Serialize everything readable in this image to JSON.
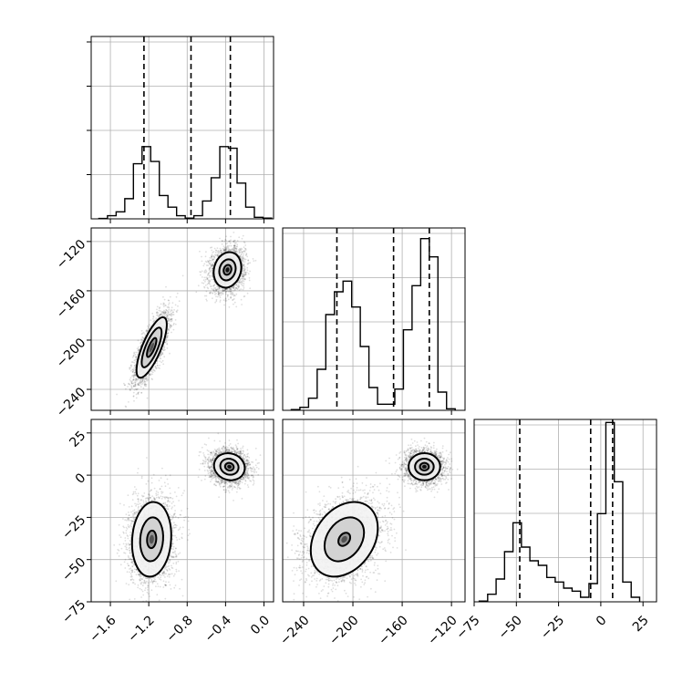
{
  "chart_data": {
    "type": "corner",
    "grid": true,
    "parameters": [
      {
        "ticks": [
          -1.6,
          -1.2,
          -0.8,
          -0.4,
          0.0
        ],
        "tick_labels": [
          "−1.6",
          "−1.2",
          "−0.8",
          "−0.4",
          "0.0"
        ],
        "range": [
          -1.8,
          0.1
        ],
        "quantiles": [
          -1.25,
          -0.76,
          -0.35
        ],
        "histogram": {
          "edges": [
            -1.72,
            -1.63,
            -1.54,
            -1.45,
            -1.36,
            -1.27,
            -1.18,
            -1.09,
            -1.0,
            -0.91,
            -0.82,
            -0.73,
            -0.64,
            -0.55,
            -0.46,
            -0.37,
            -0.28,
            -0.19,
            -0.1,
            -0.01,
            0.08
          ],
          "counts": [
            0.5,
            4,
            9,
            26,
            71,
            93,
            74,
            30,
            15,
            4,
            1,
            4,
            23,
            53,
            93,
            91,
            46,
            15,
            2,
            1
          ]
        }
      },
      {
        "ticks": [
          -240,
          -200,
          -160,
          -120
        ],
        "tick_labels": [
          "−240",
          "−200",
          "−160",
          "−120"
        ],
        "range": [
          -257,
          -109
        ],
        "quantiles": [
          -213,
          -167,
          -138
        ],
        "histogram": {
          "edges": [
            -250,
            -243,
            -236,
            -229,
            -222,
            -215,
            -208,
            -201,
            -194,
            -187,
            -180,
            -173,
            -166,
            -159,
            -152,
            -145,
            -138,
            -131,
            -124,
            -117
          ],
          "counts": [
            0.5,
            2,
            8,
            27,
            63,
            78,
            85,
            68,
            42,
            15,
            4,
            4,
            14,
            53,
            82,
            113,
            101,
            12,
            1
          ]
        }
      },
      {
        "ticks": [
          -75,
          -50,
          -25,
          0,
          25
        ],
        "tick_labels": [
          "−75",
          "−50",
          "−25",
          "0",
          "25"
        ],
        "range": [
          -75,
          33
        ],
        "quantiles": [
          -48,
          -6,
          7
        ],
        "histogram": {
          "edges": [
            -72,
            -67,
            -62,
            -57,
            -52,
            -47,
            -42,
            -37,
            -32,
            -27,
            -22,
            -17,
            -12,
            -7,
            -2,
            3,
            8,
            13,
            18,
            23
          ],
          "counts": [
            0.5,
            5,
            15,
            33,
            52,
            36,
            27,
            24,
            16,
            13,
            9,
            7,
            3,
            12,
            58,
            118,
            79,
            13,
            3
          ]
        }
      }
    ],
    "pairs": [
      {
        "row": 1,
        "col": 0,
        "clusters": [
          {
            "mean": [
              -1.17,
              -206
            ],
            "sd": [
              0.09,
              14
            ],
            "corr": 0.75,
            "samples": 2600,
            "levels": [
              0.55,
              1.15,
              1.75
            ]
          },
          {
            "mean": [
              -0.38,
              -143
            ],
            "sd": [
              0.09,
              9
            ],
            "corr": 0.15,
            "samples": 2400,
            "levels": [
              0.45,
              0.95,
              1.6
            ]
          }
        ]
      },
      {
        "row": 2,
        "col": 0,
        "clusters": [
          {
            "mean": [
              -1.17,
              -38
            ],
            "sd": [
              0.12,
              13
            ],
            "corr": 0.1,
            "samples": 2600,
            "levels": [
              0.4,
              1.0,
              1.7
            ]
          },
          {
            "mean": [
              -0.36,
              5
            ],
            "sd": [
              0.1,
              5
            ],
            "corr": -0.1,
            "samples": 2400,
            "levels": [
              0.45,
              0.95,
              1.6
            ]
          }
        ]
      },
      {
        "row": 2,
        "col": 1,
        "clusters": [
          {
            "mean": [
              -207,
              -38
            ],
            "sd": [
              16,
              13
            ],
            "corr": 0.3,
            "samples": 2600,
            "levels": [
              0.3,
              1.0,
              1.7
            ]
          },
          {
            "mean": [
              -142,
              5
            ],
            "sd": [
              8,
              5
            ],
            "corr": 0.0,
            "samples": 2400,
            "levels": [
              0.45,
              0.95,
              1.6
            ]
          }
        ]
      }
    ]
  }
}
